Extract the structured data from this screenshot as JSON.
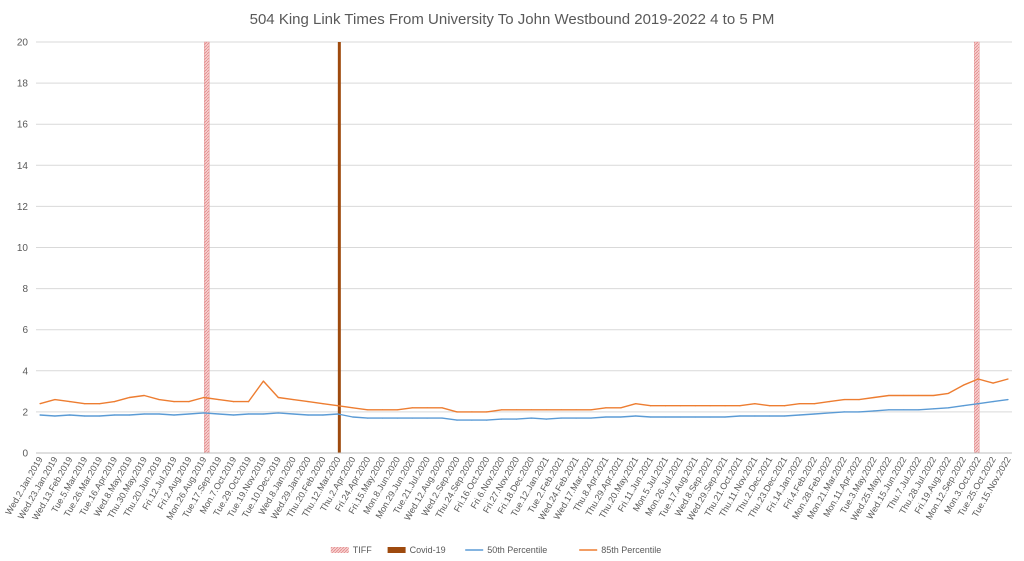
{
  "chart_data": {
    "type": "line",
    "title": "504 King Link Times From University To John Westbound 2019-2022 4 to 5 PM",
    "xlabel": "",
    "ylabel": "",
    "ylim": [
      0,
      20
    ],
    "yticks": [
      "0",
      "2",
      "4",
      "6",
      "8",
      "10",
      "12",
      "14",
      "16",
      "18",
      "20"
    ],
    "grid": true,
    "legend_position": "bottom",
    "x_tick_labels": [
      "Wed.2.Jan.2019",
      "Wed.23.Jan.2019",
      "Wed.13.Feb.2019",
      "Tue.5.Mar.2019",
      "Tue.26.Mar.2019",
      "Tue.16.Apr.2019",
      "Wed.8.May.2019",
      "Thu.30.May.2019",
      "Thu.20.Jun.2019",
      "Fri.12.Jul.2019",
      "Fri.2.Aug.2019",
      "Mon.26.Aug.2019",
      "Tue.17.Sep.2019",
      "Mon.7.Oct.2019",
      "Tue.29.Oct.2019",
      "Tue.19.Nov.2019",
      "Tue.10.Dec.2019",
      "Wed.8.Jan.2020",
      "Wed.29.Jan.2020",
      "Thu.20.Feb.2020",
      "Thu.12.Mar.2020",
      "Thu.2.Apr.2020",
      "Fri.24.Apr.2020",
      "Fri.15.May.2020",
      "Mon.8.Jun.2020",
      "Mon.29.Jun.2020",
      "Tue.21.Jul.2020",
      "Wed.12.Aug.2020",
      "Wed.2.Sep.2020",
      "Thu.24.Sep.2020",
      "Fri.16.Oct.2020",
      "Fri.6.Nov.2020",
      "Fri.27.Nov.2020",
      "Fri.18.Dec.2020",
      "Tue.12.Jan.2021",
      "Tue.2.Feb.2021",
      "Wed.24.Feb.2021",
      "Wed.17.Mar.2021",
      "Thu.8.Apr.2021",
      "Thu.29.Apr.2021",
      "Thu.20.May.2021",
      "Fri.11.Jun.2021",
      "Mon.5.Jul.2021",
      "Mon.26.Jul.2021",
      "Tue.17.Aug.2021",
      "Wed.8.Sep.2021",
      "Wed.29.Sep.2021",
      "Thu.21.Oct.2021",
      "Thu.11.Nov.2021",
      "Thu.2.Dec.2021",
      "Thu.23.Dec.2021",
      "Fri.14.Jan.2022",
      "Fri.4.Feb.2022",
      "Mon.28.Feb.2022",
      "Mon.21.Mar.2022",
      "Mon.11.Apr.2022",
      "Tue.3.May.2022",
      "Wed.25.May.2022",
      "Wed.15.Jun.2022",
      "Thu.7.Jul.2022",
      "Thu.28.Jul.2022",
      "Fri.19.Aug.2022",
      "Mon.12.Sep.2022",
      "Mon.3.Oct.2022",
      "Tue.25.Oct.2022",
      "Tue.15.Nov.2022"
    ],
    "markers": [
      {
        "name": "TIFF",
        "x_index": 11.2,
        "value": 20,
        "color": "#f4b6b6",
        "pattern": "hatch"
      },
      {
        "name": "TIFF",
        "x_index": 62.9,
        "value": 20,
        "color": "#f4b6b6",
        "pattern": "hatch"
      },
      {
        "name": "Covid-19",
        "x_index": 20.1,
        "value": 20,
        "color": "#9e4a0e"
      }
    ],
    "series": [
      {
        "name": "50th Percentile",
        "color": "#5b9bd5",
        "values": [
          1.85,
          1.8,
          1.85,
          1.8,
          1.8,
          1.85,
          1.85,
          1.9,
          1.9,
          1.85,
          1.9,
          1.95,
          1.9,
          1.85,
          1.9,
          1.9,
          1.95,
          1.9,
          1.85,
          1.85,
          1.9,
          1.75,
          1.7,
          1.7,
          1.7,
          1.7,
          1.7,
          1.7,
          1.6,
          1.6,
          1.6,
          1.65,
          1.65,
          1.7,
          1.65,
          1.7,
          1.7,
          1.7,
          1.75,
          1.75,
          1.8,
          1.75,
          1.75,
          1.75,
          1.75,
          1.75,
          1.75,
          1.8,
          1.8,
          1.8,
          1.8,
          1.85,
          1.9,
          1.95,
          2.0,
          2.0,
          2.05,
          2.1,
          2.1,
          2.1,
          2.15,
          2.2,
          2.3,
          2.4,
          2.5,
          2.6
        ]
      },
      {
        "name": "85th Percentile",
        "color": "#ed7d31",
        "values": [
          2.4,
          2.6,
          2.5,
          2.4,
          2.4,
          2.5,
          2.7,
          2.8,
          2.6,
          2.5,
          2.5,
          2.7,
          2.6,
          2.5,
          2.5,
          3.5,
          2.7,
          2.6,
          2.5,
          2.4,
          2.3,
          2.2,
          2.1,
          2.1,
          2.1,
          2.2,
          2.2,
          2.2,
          2.0,
          2.0,
          2.0,
          2.1,
          2.1,
          2.1,
          2.1,
          2.1,
          2.1,
          2.1,
          2.2,
          2.2,
          2.4,
          2.3,
          2.3,
          2.3,
          2.3,
          2.3,
          2.3,
          2.3,
          2.4,
          2.3,
          2.3,
          2.4,
          2.4,
          2.5,
          2.6,
          2.6,
          2.7,
          2.8,
          2.8,
          2.8,
          2.8,
          2.9,
          3.3,
          3.6,
          3.4,
          3.6
        ]
      }
    ],
    "legend": [
      {
        "name": "TIFF",
        "color": "#f4b6b6",
        "kind": "hatch"
      },
      {
        "name": "Covid-19",
        "color": "#9e4a0e",
        "kind": "solid"
      },
      {
        "name": "50th Percentile",
        "color": "#5b9bd5",
        "kind": "line"
      },
      {
        "name": "85th Percentile",
        "color": "#ed7d31",
        "kind": "line"
      }
    ]
  }
}
